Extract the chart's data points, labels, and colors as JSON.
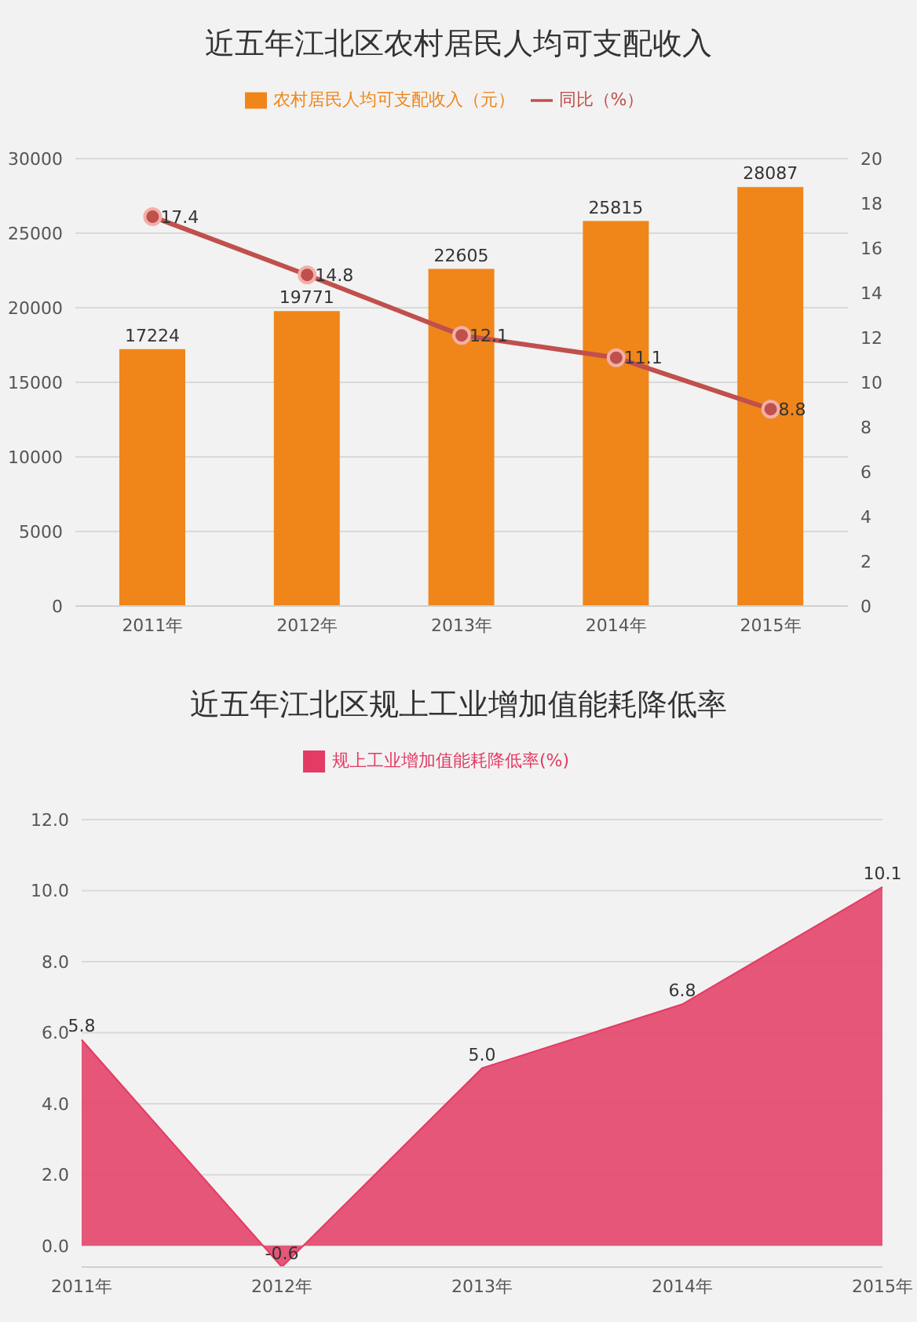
{
  "chart_data": [
    {
      "type": "bar",
      "title": "近五年江北区农村居民人均可支配收入",
      "categories": [
        "2011年",
        "2012年",
        "2013年",
        "2014年",
        "2015年"
      ],
      "series": [
        {
          "name": "农村居民人均可支配收入（元）",
          "type": "bar",
          "color": "#f0861a",
          "values": [
            17224,
            19771,
            22605,
            25815,
            28087
          ]
        },
        {
          "name": "同比（%）",
          "type": "line",
          "axis": "y2",
          "color": "#c0504d",
          "values": [
            17.4,
            14.8,
            12.1,
            11.1,
            8.8
          ]
        }
      ],
      "ylim": [
        0,
        30000
      ],
      "yticks": [
        0,
        5000,
        10000,
        15000,
        20000,
        25000,
        30000
      ],
      "y2lim": [
        0,
        20
      ],
      "y2ticks": [
        0,
        2,
        4,
        6,
        8,
        10,
        12,
        14,
        16,
        18,
        20
      ],
      "grid": "y",
      "legend": "top",
      "data_labels": true,
      "marker": "circle"
    },
    {
      "type": "area",
      "title": "近五年江北区规上工业增加值能耗降低率",
      "categories": [
        "2011年",
        "2012年",
        "2013年",
        "2014年",
        "2015年"
      ],
      "series": [
        {
          "name": "规上工业增加值能耗降低率(%)",
          "color": "#e33b63",
          "values": [
            5.8,
            -0.6,
            5.0,
            6.8,
            10.1
          ],
          "value_labels": [
            "5.8",
            "-0.6",
            "5.0",
            "6.8",
            "10.1"
          ]
        }
      ],
      "ylim": [
        -0.6,
        12
      ],
      "yticks": [
        {
          "value": 0,
          "label": "0.0"
        },
        {
          "value": 2,
          "label": "2.0"
        },
        {
          "value": 4,
          "label": "4.0"
        },
        {
          "value": 6,
          "label": "6.0"
        },
        {
          "value": 8,
          "label": "8.0"
        },
        {
          "value": 10,
          "label": "10.0"
        },
        {
          "value": 12,
          "label": "12.0"
        }
      ],
      "grid": "y",
      "legend": "top"
    }
  ]
}
